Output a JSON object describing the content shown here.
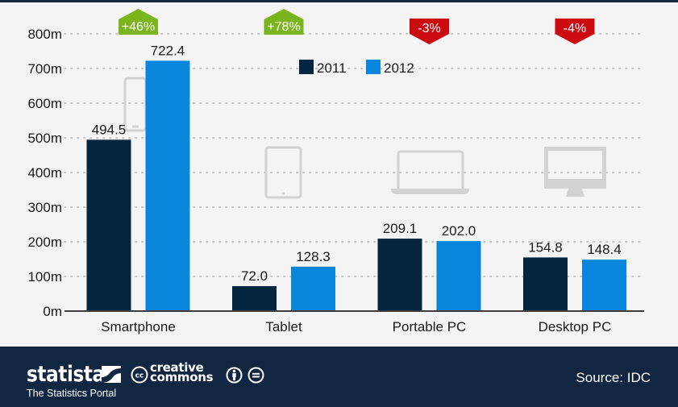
{
  "chart_data": {
    "type": "bar",
    "title": "",
    "xlabel": "",
    "ylabel": "",
    "categories": [
      "Smartphone",
      "Tablet",
      "Portable PC",
      "Desktop PC"
    ],
    "series": [
      {
        "name": "2011",
        "color": "#04263f",
        "values": [
          494.5,
          72.0,
          209.1,
          154.8
        ],
        "labels": [
          "494.5",
          "72.0",
          "209.1",
          "154.8"
        ]
      },
      {
        "name": "2012",
        "color": "#0a85dc",
        "values": [
          722.4,
          128.3,
          202.0,
          148.4
        ],
        "labels": [
          "722.4",
          "128.3",
          "202.0",
          "148.4"
        ]
      }
    ],
    "ylim": [
      0,
      800
    ],
    "yticks": [
      0,
      100,
      200,
      300,
      400,
      500,
      600,
      700,
      800
    ],
    "ytick_labels": [
      "0m",
      "100m",
      "200m",
      "300m",
      "400m",
      "500m",
      "600m",
      "700m",
      "800m"
    ],
    "grid": "dotted-horizontal",
    "legend": {
      "placement": "top-center",
      "entries": [
        "2011",
        "2012"
      ]
    },
    "annotations": [
      {
        "category": "Smartphone",
        "text": "+46%",
        "direction": "up",
        "color": "#7ab51d"
      },
      {
        "category": "Tablet",
        "text": "+78%",
        "direction": "up",
        "color": "#7ab51d"
      },
      {
        "category": "Portable PC",
        "text": "-3%",
        "direction": "down",
        "color": "#cc0a10"
      },
      {
        "category": "Desktop PC",
        "text": "-4%",
        "direction": "down",
        "color": "#cc0a10"
      }
    ],
    "category_icons": [
      "smartphone-icon",
      "tablet-icon",
      "laptop-icon",
      "desktop-monitor-icon"
    ]
  },
  "footer": {
    "brand": "statista",
    "tagline": "The Statistics Portal",
    "license_line1": "creative",
    "license_line2": "commons",
    "license_icons": [
      "cc-icon",
      "attribution-icon",
      "no-derivatives-icon"
    ],
    "source": "Source: IDC"
  }
}
